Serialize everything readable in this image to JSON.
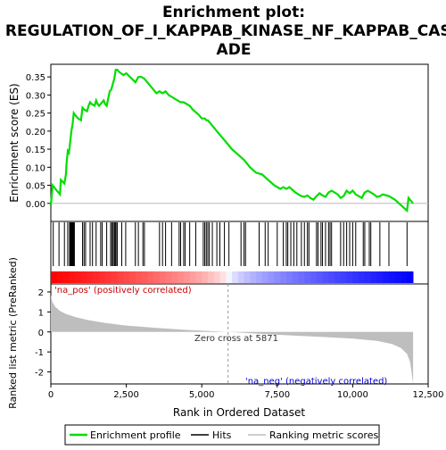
{
  "colors": {
    "enrichment_line": "#00dd00",
    "hits": "#000000",
    "metric_fill": "#bebebe",
    "pos_label": "#cc0000",
    "neg_label": "#0000cc",
    "heat_pos": "#ff0000",
    "heat_neg": "#0000ff"
  },
  "chart_data": [
    {
      "type": "line",
      "title_lines": [
        "Enrichment plot:",
        "REGULATION_OF_I_KAPPAB_KINASE_NF_KAPPAB_CASC",
        "ADE"
      ],
      "ylabel": "Enrichment score (ES)",
      "xlim": [
        0,
        12500
      ],
      "ylim": [
        -0.05,
        0.385
      ],
      "yticks": [
        0.0,
        0.05,
        0.1,
        0.15,
        0.2,
        0.25,
        0.3,
        0.35
      ],
      "ytick_labels": [
        "0.00",
        "0.05",
        "0.10",
        "0.15",
        "0.20",
        "0.25",
        "0.30",
        "0.35"
      ],
      "series": [
        {
          "name": "Enrichment profile",
          "x": [
            0,
            60,
            150,
            300,
            330,
            450,
            500,
            520,
            560,
            600,
            640,
            680,
            720,
            760,
            800,
            900,
            1000,
            1050,
            1100,
            1200,
            1250,
            1300,
            1350,
            1450,
            1500,
            1550,
            1600,
            1700,
            1750,
            1800,
            1850,
            1900,
            1950,
            2000,
            2050,
            2100,
            2150,
            2200,
            2250,
            2400,
            2500,
            2800,
            2900,
            3000,
            3100,
            3500,
            3600,
            3700,
            3800,
            3900,
            4000,
            4100,
            4200,
            4300,
            4400,
            4500,
            4600,
            4700,
            4900,
            5000,
            5100,
            5150,
            5200,
            5300,
            5400,
            5500,
            5600,
            5700,
            5800,
            5900,
            6000,
            6200,
            6400,
            6600,
            6800,
            7000,
            7200,
            7400,
            7600,
            7700,
            7800,
            7900,
            8000,
            8100,
            8200,
            8300,
            8400,
            8500,
            8600,
            8700,
            8800,
            8900,
            9000,
            9100,
            9200,
            9300,
            9400,
            9500,
            9600,
            9700,
            9800,
            9900,
            10000,
            10100,
            10200,
            10300,
            10400,
            10500,
            10600,
            10700,
            10800,
            10900,
            11000,
            11200,
            11400,
            11600,
            11800,
            11850,
            12000
          ],
          "y": [
            -0.005,
            0.05,
            0.04,
            0.025,
            0.065,
            0.055,
            0.08,
            0.11,
            0.145,
            0.14,
            0.17,
            0.2,
            0.22,
            0.25,
            0.245,
            0.235,
            0.23,
            0.265,
            0.26,
            0.255,
            0.27,
            0.28,
            0.275,
            0.27,
            0.285,
            0.275,
            0.27,
            0.28,
            0.285,
            0.275,
            0.27,
            0.29,
            0.31,
            0.315,
            0.33,
            0.345,
            0.37,
            0.37,
            0.365,
            0.355,
            0.36,
            0.335,
            0.35,
            0.35,
            0.345,
            0.305,
            0.31,
            0.305,
            0.31,
            0.3,
            0.295,
            0.29,
            0.285,
            0.28,
            0.28,
            0.275,
            0.27,
            0.26,
            0.245,
            0.235,
            0.235,
            0.23,
            0.23,
            0.22,
            0.21,
            0.2,
            0.19,
            0.18,
            0.17,
            0.16,
            0.15,
            0.135,
            0.12,
            0.1,
            0.085,
            0.08,
            0.065,
            0.05,
            0.04,
            0.045,
            0.04,
            0.045,
            0.038,
            0.03,
            0.025,
            0.02,
            0.018,
            0.022,
            0.015,
            0.01,
            0.02,
            0.028,
            0.022,
            0.018,
            0.03,
            0.035,
            0.03,
            0.025,
            0.015,
            0.02,
            0.035,
            0.028,
            0.035,
            0.025,
            0.02,
            0.015,
            0.03,
            0.035,
            0.03,
            0.025,
            0.018,
            0.02,
            0.025,
            0.02,
            0.01,
            -0.005,
            -0.02,
            0.015,
            0.0
          ]
        }
      ],
      "hits_x": [
        80,
        270,
        450,
        560,
        620,
        650,
        680,
        700,
        720,
        740,
        760,
        780,
        1050,
        1100,
        1150,
        1300,
        1380,
        1500,
        1650,
        1700,
        1850,
        1980,
        2020,
        2060,
        2100,
        2130,
        2160,
        2200,
        2350,
        2480,
        2800,
        2900,
        3050,
        3100,
        3600,
        3700,
        3800,
        4000,
        4250,
        4300,
        4400,
        4450,
        4600,
        4800,
        5050,
        5100,
        5150,
        5200,
        5250,
        5350,
        5500,
        5600,
        5750,
        5900,
        6300,
        6400,
        6450,
        6900,
        7100,
        7200,
        7500,
        7700,
        7800,
        7850,
        7950,
        8050,
        8150,
        8300,
        8400,
        8500,
        8550,
        8800,
        8850,
        8950,
        9000,
        9100,
        9200,
        9250,
        9300,
        9600,
        9700,
        9800,
        9900,
        10000,
        10100,
        10350,
        10400,
        10550,
        10600,
        10900,
        11200,
        11800
      ]
    },
    {
      "type": "area",
      "ylabel": "Ranked list metric (PreRanked)",
      "xlabel": "Rank in Ordered Dataset",
      "xlim": [
        0,
        12500
      ],
      "ylim": [
        -2.6,
        2.4
      ],
      "yticks": [
        -2,
        -1,
        0,
        1,
        2
      ],
      "ytick_labels": [
        "-2",
        "-1",
        "0",
        "1",
        "2"
      ],
      "xticks": [
        0,
        2500,
        5000,
        7500,
        10000,
        12500
      ],
      "xtick_labels": [
        "0",
        "2,500",
        "5,000",
        "7,500",
        "10,000",
        "12,500"
      ],
      "series": [
        {
          "name": "Ranking metric scores",
          "x": [
            0,
            50,
            150,
            300,
            500,
            800,
            1200,
            1800,
            2500,
            3500,
            4500,
            5871,
            7000,
            8000,
            9000,
            10000,
            10800,
            11300,
            11600,
            11800,
            11900,
            11950,
            12000
          ],
          "y": [
            1.85,
            1.5,
            1.25,
            1.05,
            0.9,
            0.75,
            0.6,
            0.45,
            0.32,
            0.2,
            0.1,
            0.0,
            -0.1,
            -0.18,
            -0.25,
            -0.33,
            -0.45,
            -0.6,
            -0.8,
            -1.1,
            -1.5,
            -2.0,
            -2.6
          ]
        }
      ],
      "zero_cross_x": 5871,
      "annotations": {
        "zero_cross": "Zero cross at 5871",
        "pos": "'na_pos' (positively correlated)",
        "neg": "'na_neg' (negatively correlated)"
      }
    }
  ],
  "legend": {
    "items": [
      "Enrichment profile",
      "Hits",
      "Ranking metric scores"
    ]
  }
}
